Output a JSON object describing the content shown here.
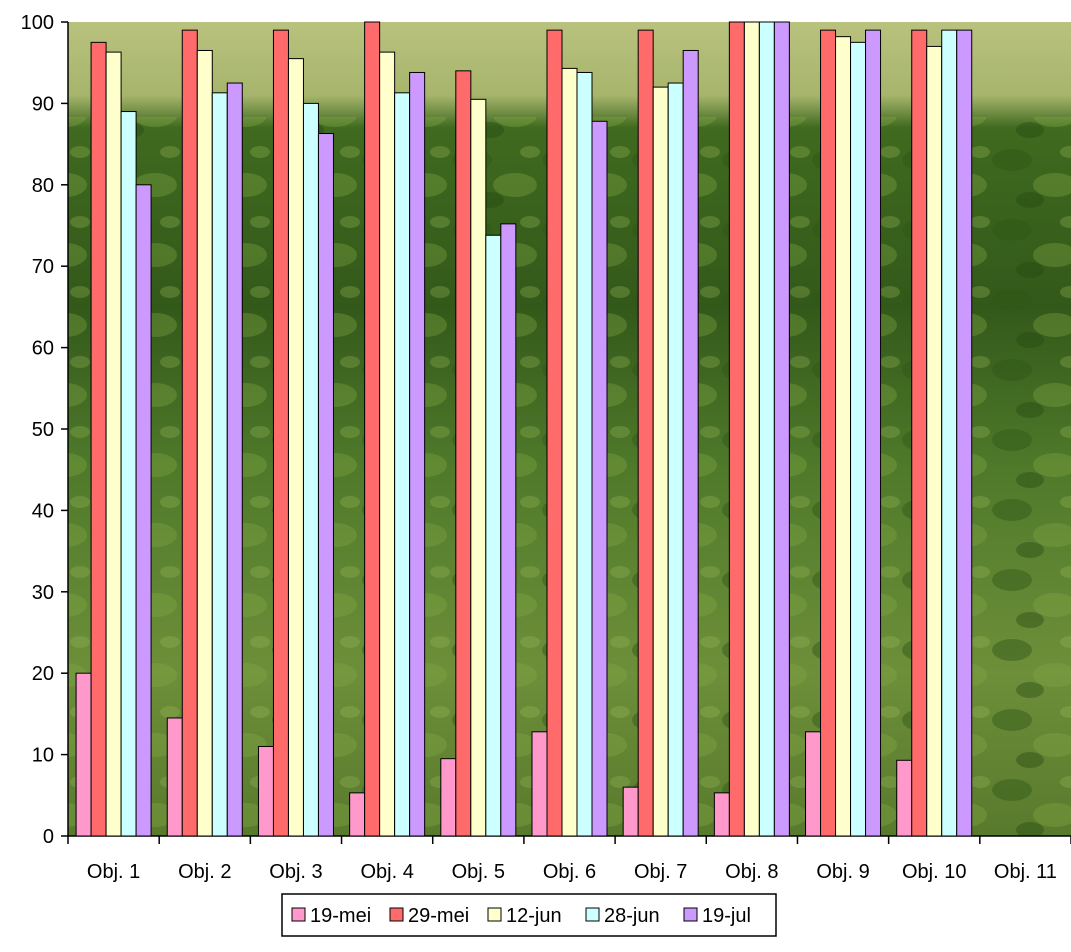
{
  "chart_data": {
    "type": "bar",
    "title": "",
    "xlabel": "",
    "ylabel": "",
    "ylim": [
      0,
      100
    ],
    "yticks": [
      0,
      10,
      20,
      30,
      40,
      50,
      60,
      70,
      80,
      90,
      100
    ],
    "grid": false,
    "legend_position": "bottom-center",
    "background": "photo of a green leafy crop field",
    "categories": [
      "Obj. 1",
      "Obj. 2",
      "Obj. 3",
      "Obj. 4",
      "Obj. 5",
      "Obj. 6",
      "Obj. 7",
      "Obj. 8",
      "Obj. 9",
      "Obj. 10",
      "Obj. 11"
    ],
    "series": [
      {
        "name": "19-mei",
        "color": "#ff99cc",
        "values": [
          20,
          14.5,
          11,
          5.3,
          9.5,
          12.8,
          6,
          5.3,
          12.8,
          9.3,
          null
        ]
      },
      {
        "name": "29-mei",
        "color": "#ff6b6b",
        "values": [
          97.5,
          99,
          99,
          100,
          94,
          99,
          99,
          100,
          99,
          99,
          null
        ]
      },
      {
        "name": "12-jun",
        "color": "#ffffcc",
        "values": [
          96.3,
          96.5,
          95.5,
          96.3,
          90.5,
          94.3,
          92,
          100,
          98.2,
          97,
          null
        ]
      },
      {
        "name": "28-jun",
        "color": "#ccffff",
        "values": [
          89,
          91.3,
          90,
          91.3,
          73.8,
          93.8,
          92.5,
          100,
          97.5,
          99,
          null
        ]
      },
      {
        "name": "19-jul",
        "color": "#cc99ff",
        "values": [
          80,
          92.5,
          86.3,
          93.8,
          75.2,
          87.8,
          96.5,
          100,
          99,
          99,
          null
        ]
      }
    ]
  }
}
